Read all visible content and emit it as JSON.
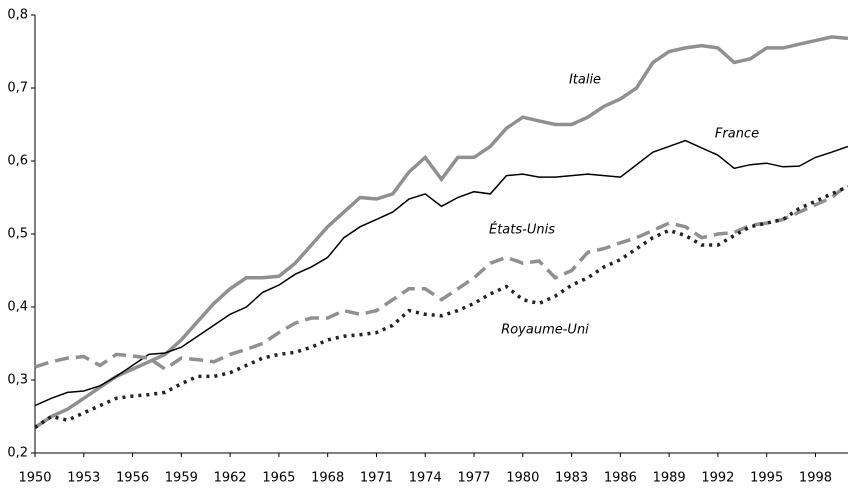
{
  "chart_data": {
    "type": "line",
    "x": [
      1950,
      1951,
      1952,
      1953,
      1954,
      1955,
      1956,
      1957,
      1958,
      1959,
      1960,
      1961,
      1962,
      1963,
      1964,
      1965,
      1966,
      1967,
      1968,
      1969,
      1970,
      1971,
      1972,
      1973,
      1974,
      1975,
      1976,
      1977,
      1978,
      1979,
      1980,
      1981,
      1982,
      1983,
      1984,
      1985,
      1986,
      1987,
      1988,
      1989,
      1990,
      1991,
      1992,
      1993,
      1994,
      1995,
      1996,
      1997,
      1998,
      1999,
      2000
    ],
    "series": [
      {
        "name": "Italie",
        "color": "#909090",
        "width": 3.5,
        "dash": "solid",
        "values": [
          0.235,
          0.25,
          0.26,
          0.275,
          0.29,
          0.305,
          0.315,
          0.325,
          0.335,
          0.355,
          0.38,
          0.405,
          0.425,
          0.44,
          0.44,
          0.442,
          0.46,
          0.485,
          0.51,
          0.53,
          0.55,
          0.548,
          0.555,
          0.585,
          0.605,
          0.575,
          0.605,
          0.605,
          0.62,
          0.645,
          0.66,
          0.655,
          0.65,
          0.65,
          0.66,
          0.675,
          0.685,
          0.7,
          0.735,
          0.75,
          0.755,
          0.758,
          0.755,
          0.735,
          0.74,
          0.755,
          0.755,
          0.76,
          0.765,
          0.77,
          0.768
        ]
      },
      {
        "name": "France",
        "color": "#000000",
        "width": 1.5,
        "dash": "solid",
        "values": [
          0.265,
          0.275,
          0.283,
          0.285,
          0.292,
          0.305,
          0.32,
          0.335,
          0.337,
          0.345,
          0.36,
          0.375,
          0.39,
          0.4,
          0.42,
          0.43,
          0.445,
          0.455,
          0.468,
          0.495,
          0.51,
          0.52,
          0.53,
          0.548,
          0.555,
          0.538,
          0.55,
          0.558,
          0.555,
          0.58,
          0.582,
          0.578,
          0.578,
          0.58,
          0.582,
          0.58,
          0.578,
          0.595,
          0.612,
          0.62,
          0.628,
          0.618,
          0.608,
          0.59,
          0.595,
          0.597,
          0.592,
          0.593,
          0.605,
          0.612,
          0.62
        ]
      },
      {
        "name": "États-Unis",
        "color": "#909090",
        "width": 3.5,
        "dash": "dashed",
        "values": [
          0.318,
          0.325,
          0.33,
          0.332,
          0.32,
          0.335,
          0.333,
          0.33,
          0.315,
          0.33,
          0.328,
          0.325,
          0.335,
          0.342,
          0.35,
          0.365,
          0.378,
          0.385,
          0.385,
          0.395,
          0.39,
          0.395,
          0.41,
          0.425,
          0.425,
          0.41,
          0.425,
          0.44,
          0.46,
          0.468,
          0.46,
          0.463,
          0.44,
          0.45,
          0.475,
          0.48,
          0.488,
          0.495,
          0.505,
          0.515,
          0.51,
          0.495,
          0.5,
          0.502,
          0.512,
          0.515,
          0.52,
          0.53,
          0.54,
          0.55,
          0.568
        ]
      },
      {
        "name": "Royaume-Uni",
        "color": "#222222",
        "width": 3.5,
        "dash": "dotted",
        "values": [
          0.235,
          0.25,
          0.245,
          0.255,
          0.265,
          0.275,
          0.278,
          0.28,
          0.283,
          0.295,
          0.305,
          0.305,
          0.31,
          0.32,
          0.33,
          0.335,
          0.338,
          0.345,
          0.355,
          0.36,
          0.362,
          0.365,
          0.375,
          0.395,
          0.39,
          0.388,
          0.395,
          0.405,
          0.418,
          0.428,
          0.41,
          0.405,
          0.415,
          0.43,
          0.44,
          0.455,
          0.465,
          0.48,
          0.495,
          0.505,
          0.498,
          0.485,
          0.485,
          0.498,
          0.51,
          0.515,
          0.52,
          0.535,
          0.545,
          0.555,
          0.565
        ]
      }
    ],
    "xlim": [
      1950,
      2000
    ],
    "xticks": [
      1950,
      1953,
      1956,
      1959,
      1962,
      1965,
      1968,
      1971,
      1974,
      1977,
      1980,
      1983,
      1986,
      1989,
      1992,
      1995,
      1998
    ],
    "ylim": [
      0.2,
      0.8
    ],
    "yticks": [
      {
        "value": 0.2,
        "label": "0,2"
      },
      {
        "value": 0.3,
        "label": "0,3"
      },
      {
        "value": 0.4,
        "label": "0,4"
      },
      {
        "value": 0.5,
        "label": "0,5"
      },
      {
        "value": 0.6,
        "label": "0,6"
      },
      {
        "value": 0.7,
        "label": "0,7"
      },
      {
        "value": 0.8,
        "label": "0,8"
      }
    ],
    "grid": false
  }
}
